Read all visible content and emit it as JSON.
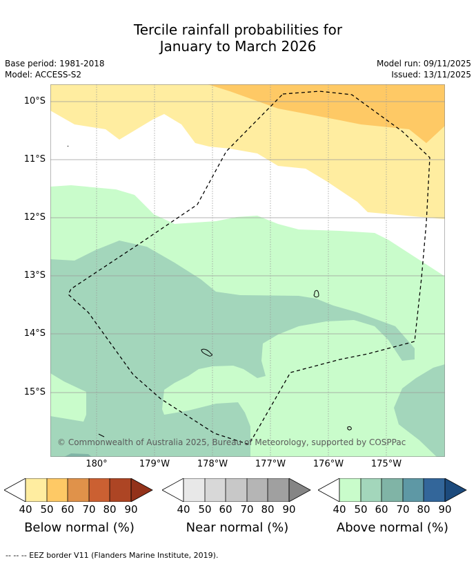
{
  "title_line1": "Tercile rainfall probabilities for",
  "title_line2": "January to March 2026",
  "base_period": "Base period: 1981-2018",
  "model": "Model: ACCESS-S2",
  "model_run": "Model run: 09/11/2025",
  "issued": "Issued: 13/11/2025",
  "lat_labels": [
    "10°S",
    "11°S",
    "12°S",
    "13°S",
    "14°S",
    "15°S"
  ],
  "lon_labels": [
    "180°",
    "179°W",
    "178°W",
    "177°W",
    "176°W",
    "175°W"
  ],
  "copyright": "© Commonwealth of Australia 2025, Bureau of Meteorology, supported by COSPPac",
  "colorbars": [
    {
      "title": "Below normal (%)",
      "ticks": [
        "40",
        "50",
        "60",
        "70",
        "80",
        "90"
      ],
      "colors": [
        "#ffffff",
        "#ffeda0",
        "#fec965",
        "#e0924a",
        "#cb6032",
        "#ad4524",
        "#93321a"
      ]
    },
    {
      "title": "Near normal (%)",
      "ticks": [
        "40",
        "50",
        "60",
        "70",
        "80",
        "90"
      ],
      "colors": [
        "#ffffff",
        "#e8e8e8",
        "#d8d8d8",
        "#c8c8c8",
        "#b5b5b5",
        "#a0a0a0",
        "#858585"
      ]
    },
    {
      "title": "Above normal (%)",
      "ticks": [
        "40",
        "50",
        "60",
        "70",
        "80",
        "90"
      ],
      "colors": [
        "#ffffff",
        "#c9fccb",
        "#a3d6bb",
        "#80b4a6",
        "#5e98a5",
        "#33669a",
        "#1c4a7c"
      ]
    }
  ],
  "footnote": "-- -- -- EEZ border V11 (Flanders Marine Institute, 2019)."
}
